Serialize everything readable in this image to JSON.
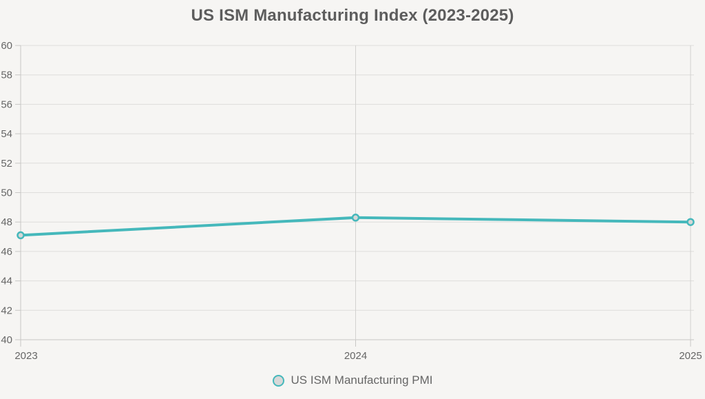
{
  "title": "US ISM Manufacturing Index (2023-2025)",
  "legend": {
    "label": "US ISM Manufacturing PMI"
  },
  "colors": {
    "line": "#45b8bb",
    "marker_fill": "#d6d8d7",
    "marker_stroke": "#45b8bb",
    "grid_horizontal": "#dedddb",
    "grid_vertical": "#d2d1cf",
    "axis": "#c8c7c5",
    "tick_text": "#666666",
    "title_text": "#5d5d5d",
    "background": "#f6f5f3",
    "legend_fill": "#d8d8d8"
  },
  "chart_data": {
    "type": "line",
    "title": "US ISM Manufacturing Index (2023-2025)",
    "x": [
      "2023",
      "2024",
      "2025"
    ],
    "series": [
      {
        "name": "US ISM Manufacturing PMI",
        "values": [
          47.1,
          48.3,
          48.0
        ]
      }
    ],
    "xlabel": "",
    "ylabel": "",
    "ylim": [
      40,
      60
    ],
    "ytick_step": 2,
    "grid": true,
    "legend_position": "bottom"
  }
}
